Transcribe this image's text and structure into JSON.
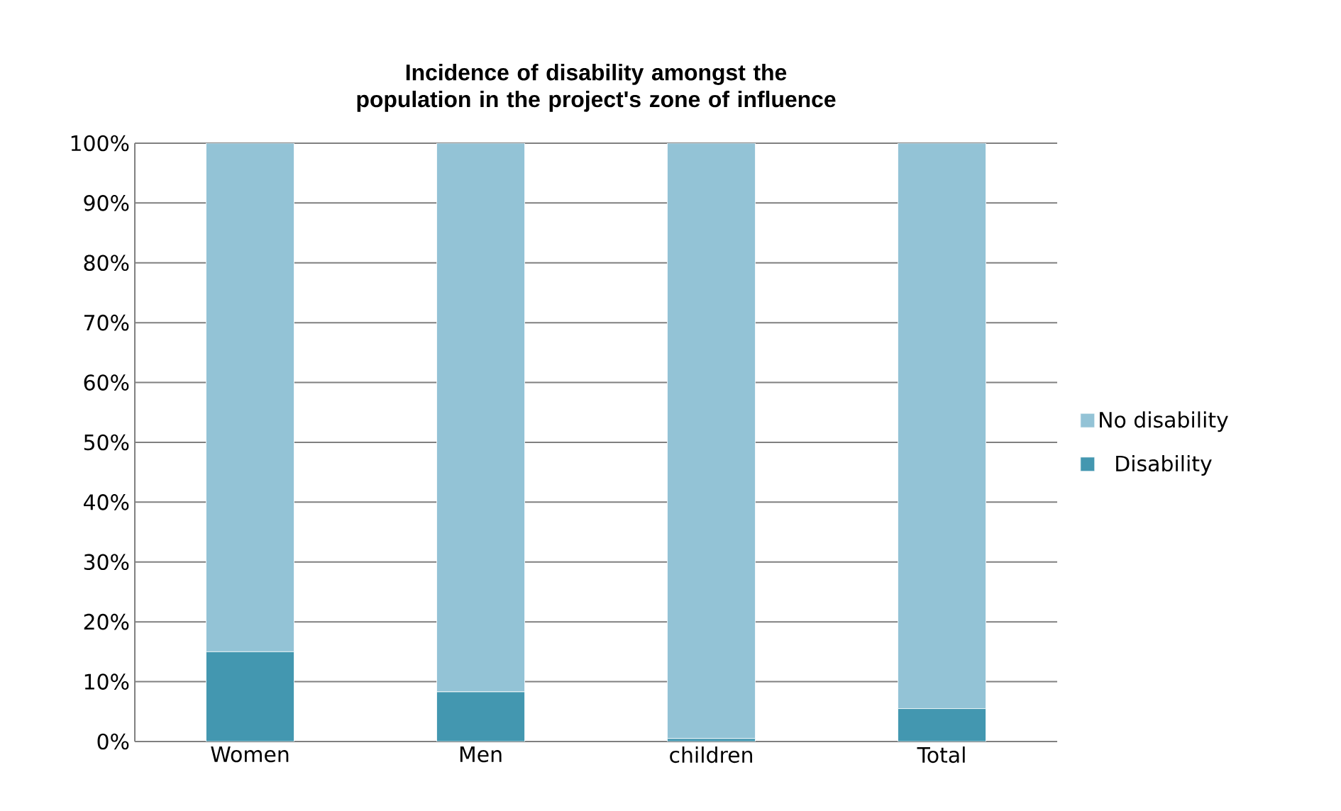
{
  "chart_data": {
    "type": "bar",
    "stacked": true,
    "title": "Incidence of disability amongst the population in the project's zone of influence",
    "categories": [
      "Women",
      "Men",
      "children",
      "Total"
    ],
    "series": [
      {
        "name": "Disability",
        "color": "#4397b0",
        "values": [
          15,
          8.3,
          0.5,
          5.5
        ]
      },
      {
        "name": "No disability",
        "color": "#93c3d6",
        "values": [
          85,
          91.7,
          99.5,
          94.5
        ]
      }
    ],
    "ylim": [
      0,
      100
    ],
    "yticks": [
      {
        "value": 0,
        "label": "0%"
      },
      {
        "value": 10,
        "label": "10%"
      },
      {
        "value": 20,
        "label": "20%"
      },
      {
        "value": 30,
        "label": "30%"
      },
      {
        "value": 40,
        "label": "40%"
      },
      {
        "value": 50,
        "label": "50%"
      },
      {
        "value": 60,
        "label": "60%"
      },
      {
        "value": 70,
        "label": "70%"
      },
      {
        "value": 80,
        "label": "80%"
      },
      {
        "value": 90,
        "label": "90%"
      },
      {
        "value": 100,
        "label": "100%"
      }
    ],
    "grid": "y",
    "legend": "right"
  }
}
